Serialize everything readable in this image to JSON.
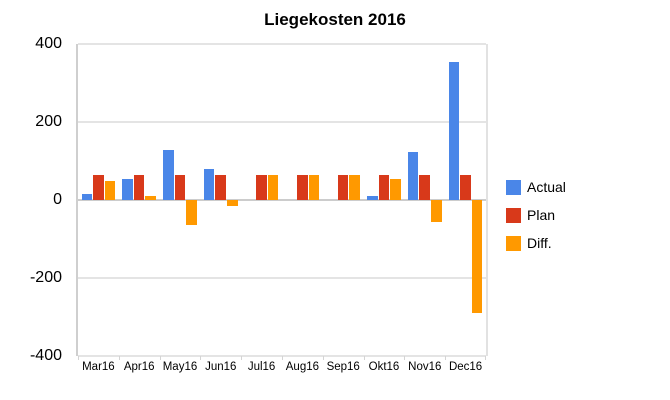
{
  "title": "Liegekosten 2016",
  "chart_data": {
    "type": "bar",
    "title": "Liegekosten 2016",
    "categories": [
      "Mar16",
      "Apr16",
      "May16",
      "Jun16",
      "Jul16",
      "Aug16",
      "Sep16",
      "Okt16",
      "Nov16",
      "Dec16"
    ],
    "series": [
      {
        "name": "Actual",
        "color": "#4a86e8",
        "values": [
          15,
          55,
          128,
          80,
          0,
          0,
          0,
          10,
          122,
          355
        ]
      },
      {
        "name": "Plan",
        "color": "#d8391a",
        "values": [
          65,
          65,
          65,
          65,
          65,
          65,
          65,
          65,
          65,
          65
        ]
      },
      {
        "name": "Diff.",
        "color": "#ff9900",
        "values": [
          50,
          10,
          -63,
          -15,
          65,
          65,
          65,
          55,
          -57,
          -290
        ]
      }
    ],
    "xlabel": "",
    "ylabel": "",
    "ylim": [
      -400,
      400
    ],
    "yticks": [
      400,
      200,
      0,
      -200,
      -400
    ],
    "grid": true,
    "legend_position": "right",
    "gridline_color": "#e4e4e4",
    "zero_line_color": "#cccccc",
    "background_color": "#ffffff"
  }
}
